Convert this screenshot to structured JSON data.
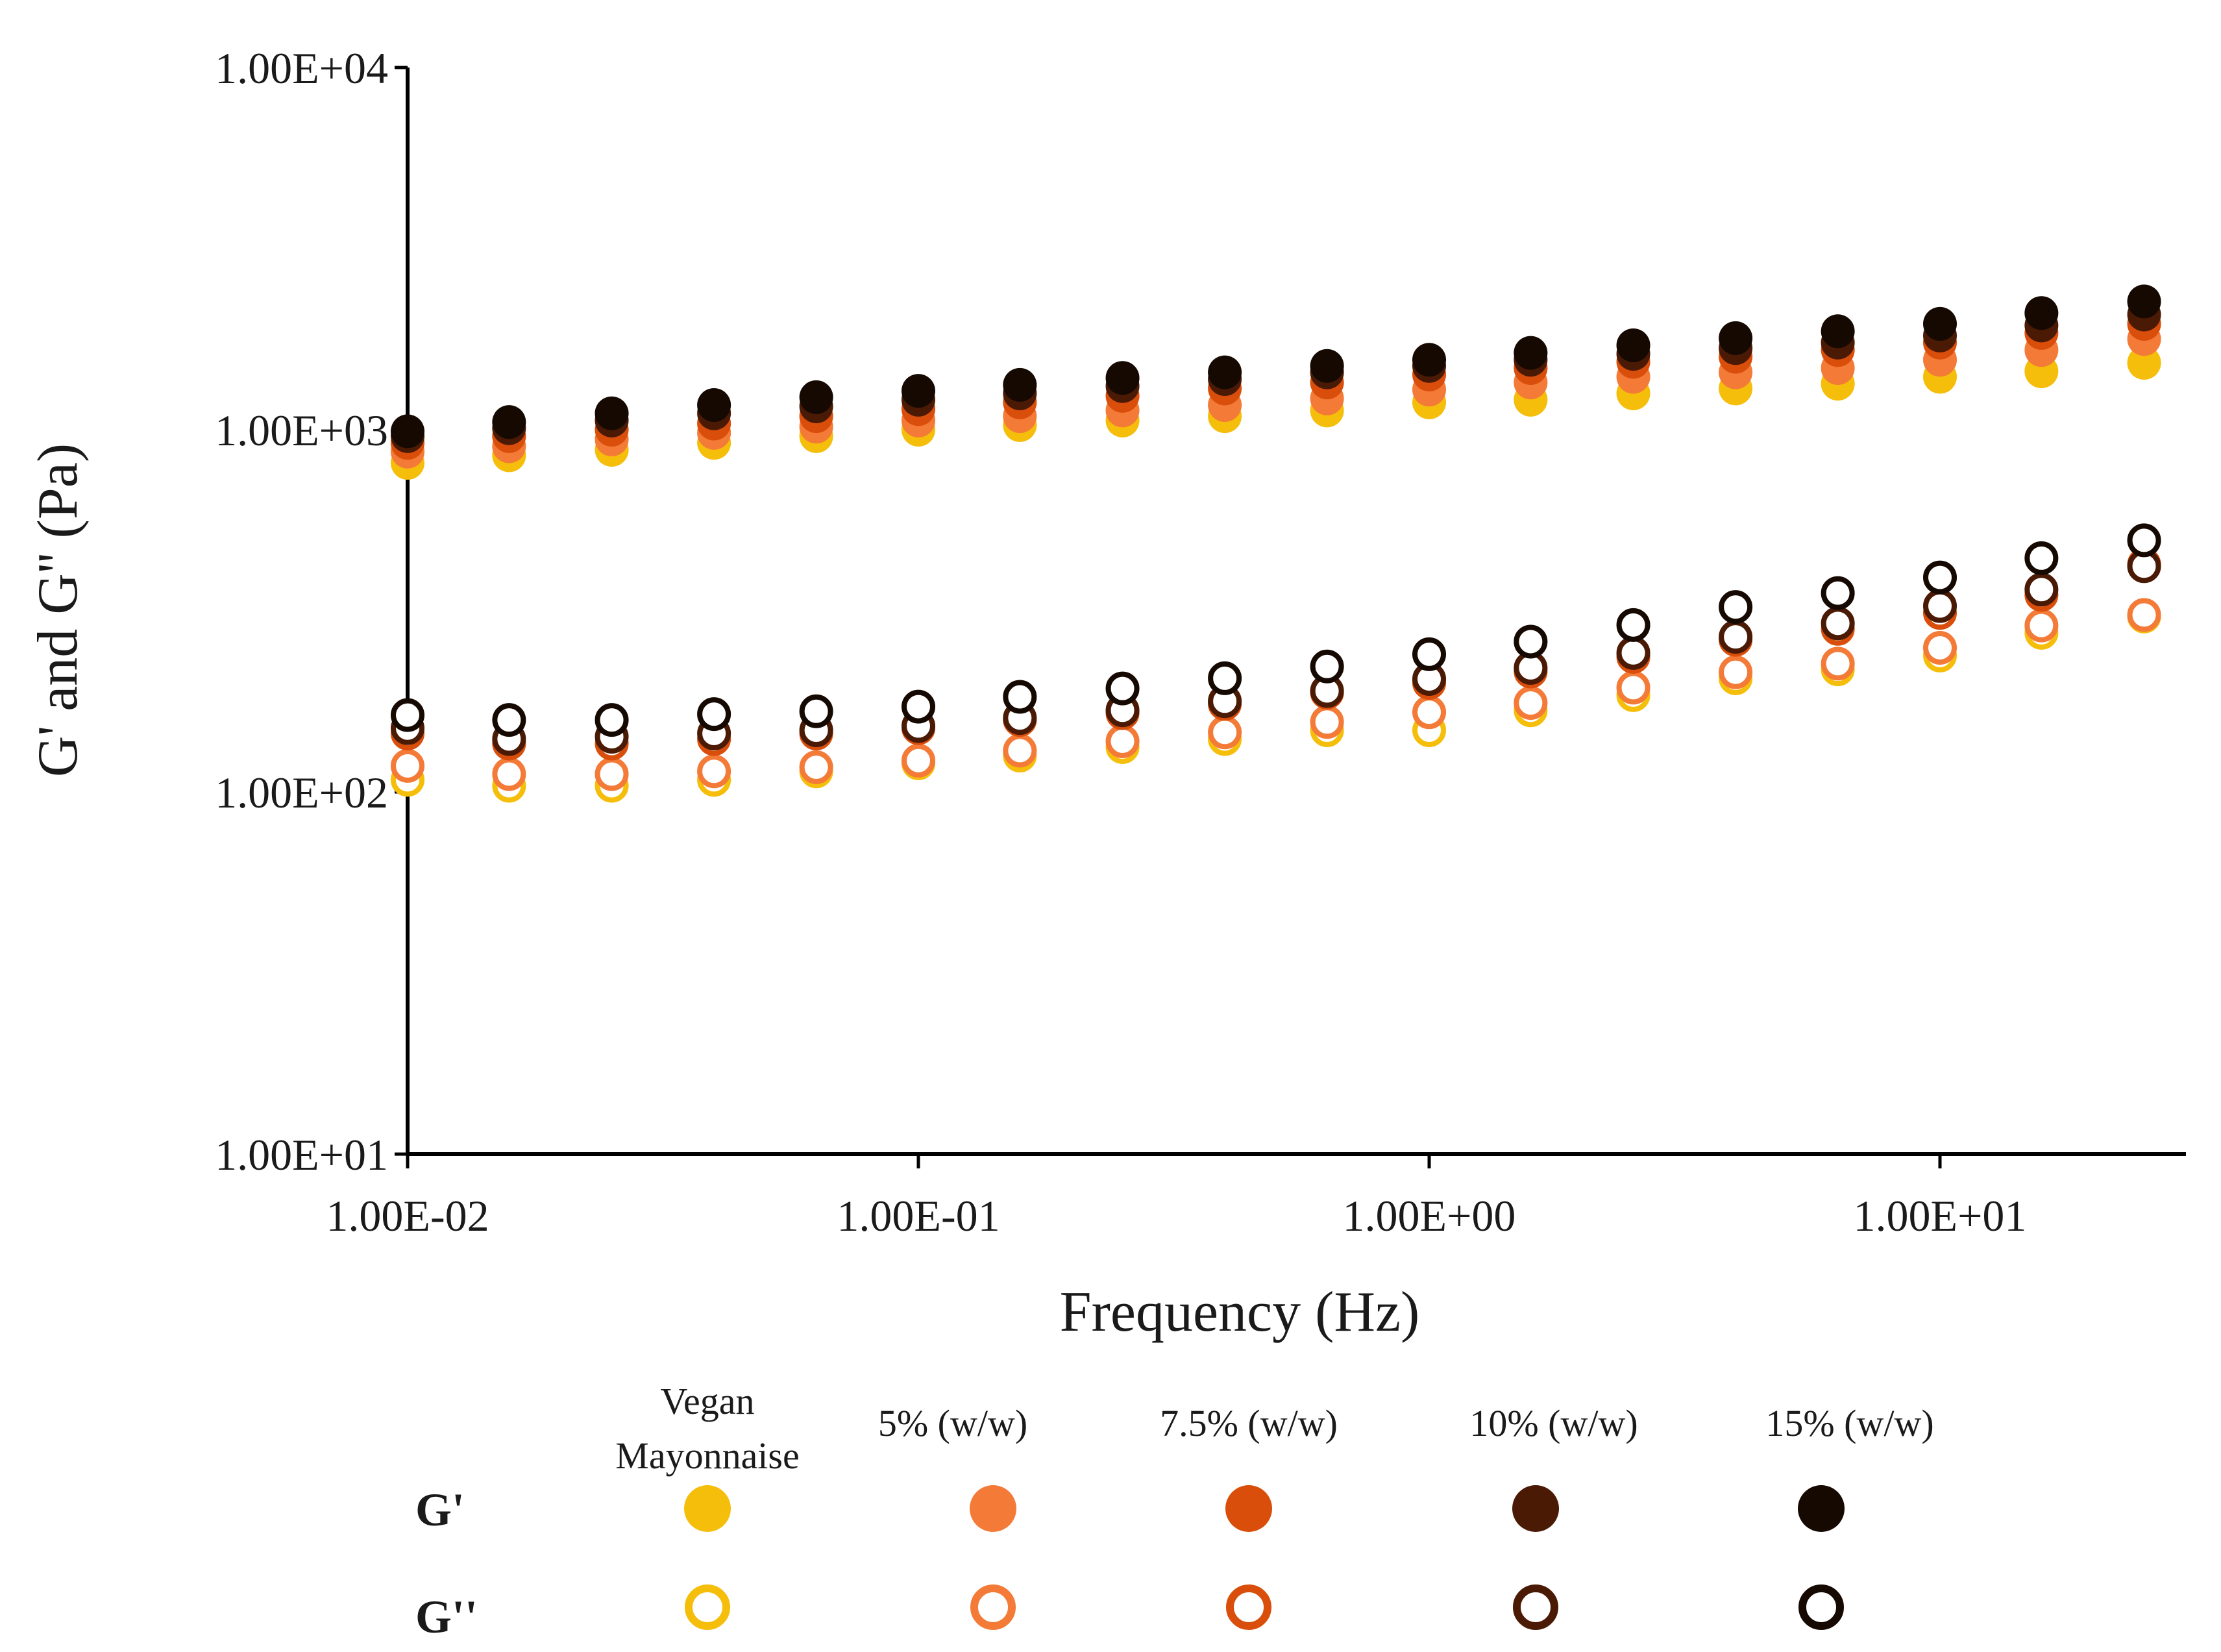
{
  "chart_data": {
    "type": "scatter",
    "title": "",
    "xlabel": "Frequency (Hz)",
    "ylabel": "G' and G'' (Pa)",
    "x_scale": "log",
    "y_scale": "log",
    "xlim": [
      0.01,
      28
    ],
    "ylim": [
      10,
      10000
    ],
    "x_ticks": [
      {
        "value": 0.01,
        "label": "1.00E-02"
      },
      {
        "value": 0.1,
        "label": "1.00E-01"
      },
      {
        "value": 1,
        "label": "1.00E+00"
      },
      {
        "value": 10,
        "label": "1.00E+01"
      }
    ],
    "y_ticks": [
      {
        "value": 10,
        "label": "1.00E+01"
      },
      {
        "value": 100,
        "label": "1.00E+02"
      },
      {
        "value": 1000,
        "label": "1.00E+03"
      },
      {
        "value": 10000,
        "label": "1.00E+04"
      }
    ],
    "grid": false,
    "x": [
      0.01,
      0.0158,
      0.0251,
      0.0398,
      0.0631,
      0.1,
      0.158,
      0.251,
      0.398,
      0.631,
      1.0,
      1.58,
      2.51,
      3.98,
      6.31,
      10.0,
      15.8,
      25.1
    ],
    "series": [
      {
        "name": "Vegan Mayonnaise",
        "modulus": "G'",
        "fill": "filled",
        "color": "#F5BE0B",
        "values": [
          810,
          850,
          880,
          920,
          960,
          1000,
          1030,
          1060,
          1090,
          1130,
          1190,
          1210,
          1260,
          1300,
          1340,
          1400,
          1450,
          1530
        ]
      },
      {
        "name": "5% (w/w)",
        "modulus": "G'",
        "fill": "filled",
        "color": "#F47A38",
        "values": [
          870,
          900,
          940,
          980,
          1020,
          1060,
          1090,
          1130,
          1170,
          1220,
          1290,
          1350,
          1400,
          1440,
          1480,
          1560,
          1660,
          1780
        ]
      },
      {
        "name": "7.5% (w/w)",
        "modulus": "G'",
        "fill": "filled",
        "color": "#D94E0B",
        "values": [
          920,
          960,
          1000,
          1040,
          1090,
          1140,
          1190,
          1240,
          1300,
          1350,
          1420,
          1480,
          1540,
          1590,
          1660,
          1740,
          1850,
          1960
        ]
      },
      {
        "name": "10% (w/w)",
        "modulus": "G'",
        "fill": "filled",
        "color": "#4A1A05",
        "values": [
          960,
          1010,
          1060,
          1110,
          1160,
          1210,
          1260,
          1320,
          1380,
          1440,
          1500,
          1560,
          1620,
          1680,
          1740,
          1820,
          1940,
          2080
        ]
      },
      {
        "name": "15% (w/w)",
        "modulus": "G'",
        "fill": "filled",
        "color": "#150902",
        "values": [
          990,
          1050,
          1110,
          1170,
          1230,
          1280,
          1330,
          1390,
          1440,
          1500,
          1560,
          1630,
          1710,
          1790,
          1870,
          1960,
          2100,
          2260
        ]
      },
      {
        "name": "Vegan Mayonnaise",
        "modulus": "G''",
        "fill": "open",
        "color": "#F5BE0B",
        "values": [
          108,
          104,
          104,
          108,
          114,
          120,
          126,
          133,
          140,
          148,
          148,
          168,
          185,
          206,
          218,
          238,
          275,
          305
        ]
      },
      {
        "name": "5% (w/w)",
        "modulus": "G''",
        "fill": "open",
        "color": "#F47A38",
        "values": [
          118,
          112,
          112,
          114,
          117,
          122,
          130,
          138,
          146,
          156,
          166,
          176,
          194,
          214,
          226,
          250,
          288,
          308
        ]
      },
      {
        "name": "7.5% (w/w)",
        "modulus": "G''",
        "fill": "open",
        "color": "#D94E0B",
        "values": [
          145,
          136,
          136,
          140,
          145,
          150,
          158,
          165,
          175,
          188,
          200,
          215,
          236,
          263,
          282,
          312,
          350,
          425
        ]
      },
      {
        "name": "10% (w/w)",
        "modulus": "G''",
        "fill": "open",
        "color": "#4A1A05",
        "values": [
          150,
          140,
          142,
          145,
          148,
          152,
          160,
          168,
          178,
          190,
          205,
          220,
          242,
          268,
          292,
          326,
          362,
          420
        ]
      },
      {
        "name": "15% (w/w)",
        "modulus": "G''",
        "fill": "open",
        "color": "#150902",
        "values": [
          163,
          158,
          158,
          164,
          167,
          172,
          183,
          193,
          206,
          222,
          240,
          260,
          289,
          324,
          354,
          391,
          442,
          495
        ]
      }
    ]
  },
  "legend": {
    "placement": "bottom",
    "columns": [
      "Vegan Mayonnaise",
      "5% (w/w)",
      "7.5% (w/w)",
      "10% (w/w)",
      "15% (w/w)"
    ],
    "vegan_line1": "Vegan",
    "vegan_line2": "Mayonnaise",
    "row_gprime": "G'",
    "row_gdoubleprime": "G''",
    "colors": [
      "#F5BE0B",
      "#F47A38",
      "#D94E0B",
      "#4A1A05",
      "#150902"
    ]
  }
}
